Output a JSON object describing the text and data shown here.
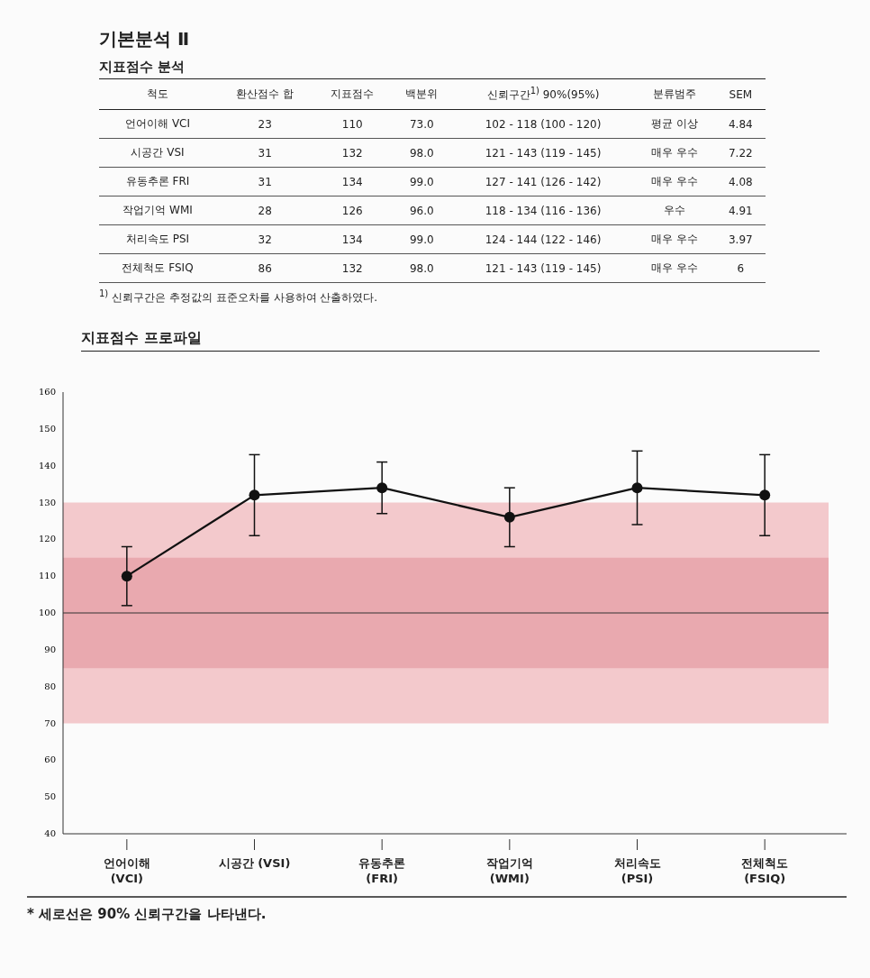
{
  "chart_data": [
    {
      "type": "other",
      "title": "기본분석 Ⅱ",
      "subtitle": "지표점수 분석",
      "categories": [
        "척도",
        "환산점수 합",
        "지표점수",
        "백분위",
        "신뢰구간$^{1)}$ 90%(95%)",
        "분류범주",
        "SEM"
      ],
      "annotations": [
        "언어이해 VCI",
        "23",
        "110",
        "73.0",
        "102 - 118 (100 - 120)",
        "평균 이상",
        "4.84",
        "시공간 VSI",
        "31",
        "132",
        "98.0",
        "121 - 143 (119 - 145)",
        "매우 우수",
        "7.22",
        "유동추론 FRI",
        "31",
        "134",
        "99.0",
        "127 - 141 (126 - 142)",
        "매우 우수",
        "4.08",
        "작업기억 WMI",
        "28",
        "126",
        "96.0",
        "118 - 134 (116 - 136)",
        "우수",
        "4.91",
        "처리속도 PSI",
        "32",
        "134",
        "99.0",
        "124 - 144 (122 - 146)",
        "매우 우수",
        "3.97",
        "전체척도 FSIQ",
        "86",
        "132",
        "98.0",
        "121 - 143 (119 - 145)",
        "매우 우수",
        "6",
        "$^{1)}$ 신뢰구간은 추정값의 표준오차를 사용하여 산출하였다."
      ]
    },
    {
      "type": "line",
      "title": "지표점수 프로파일",
      "categories": [
        "언어이해 (VCI)",
        "시공간 (VSI)",
        "유동추론 (FRI)",
        "작업기억 (WMI)",
        "처리속도 (PSI)",
        "전체척도 (FSIQ)"
      ],
      "values": [
        110,
        132,
        134,
        126,
        134,
        132
      ],
      "errors": [
        [
          102,
          118
        ],
        [
          121,
          143
        ],
        [
          127,
          141
        ],
        [
          118,
          134
        ],
        [
          124,
          144
        ],
        [
          121,
          143
        ]
      ],
      "color": "#111111",
      "marker": "circle",
      "ylim": [
        40,
        160
      ],
      "yticks": [
        40,
        50,
        60,
        70,
        80,
        90,
        100,
        110,
        120,
        130,
        140,
        150,
        160
      ],
      "bands": [
        {
          "axis": "y",
          "from": 70,
          "to": 130,
          "color": "#f3c9cc"
        },
        {
          "axis": "y",
          "from": 85,
          "to": 115,
          "color": "#e9a9af"
        }
      ],
      "ref_lines": [
        {
          "axis": "y",
          "value": 100,
          "color": "#333333"
        }
      ],
      "annotations": [
        "* 세로선은 90% 신뢰구간을 나타낸다."
      ]
    }
  ]
}
